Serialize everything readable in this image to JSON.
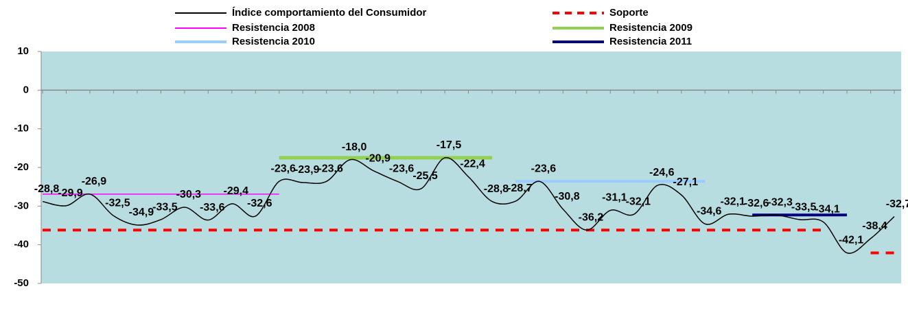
{
  "chart_data": {
    "type": "line",
    "categories": [
      null,
      null,
      null,
      null,
      null,
      null,
      null,
      null,
      null,
      null,
      null,
      null,
      null,
      null,
      null,
      null,
      null,
      null,
      null,
      null,
      null,
      null,
      null,
      null,
      null,
      null,
      null,
      null,
      null,
      null,
      null,
      null,
      null,
      null,
      null,
      null,
      null
    ],
    "ylim": [
      -50,
      10
    ],
    "yticks": [
      -50,
      -40,
      -30,
      -20,
      -10,
      0,
      10
    ],
    "plot_background": "#b7dde1",
    "legend": "top",
    "series": [
      {
        "name": "Índice comportamiento del Consumidor",
        "color": "#000000",
        "width": 1.5,
        "smooth": true,
        "values": [
          -28.8,
          -29.9,
          -26.9,
          -32.5,
          -34.9,
          -33.5,
          -30.3,
          -33.6,
          -29.4,
          -32.6,
          -23.6,
          -23.9,
          -23.6,
          -18.0,
          -20.9,
          -23.6,
          -25.5,
          -17.5,
          -22.4,
          -28.8,
          -28.7,
          -23.6,
          -30.8,
          -36.2,
          -31.1,
          -32.1,
          -24.6,
          -27.1,
          -34.6,
          -32.1,
          -32.6,
          -32.3,
          -33.5,
          -34.1,
          -42.1,
          -38.4,
          -32.7
        ],
        "value_labels": [
          "-28,8",
          "-29,9",
          "-26,9",
          "-32,5",
          "-34,9",
          "-33,5",
          "-30,3",
          "-33,6",
          "-29,4",
          "-32,6",
          "-23,6",
          "-23,9",
          "-23,6",
          "-18,0",
          "-20,9",
          "-23,6",
          "-25,5",
          "-17,5",
          "-22,4",
          "-28,8",
          "-28,7",
          "-23,6",
          "-30,8",
          "-36,2",
          "-31,1",
          "-32,1",
          "-24,6",
          "-27,1",
          "-34,6",
          "-32,1",
          "-32,6",
          "-32,3",
          "-33,5",
          "-34,1",
          "-42,1",
          "-38,4",
          "-32,7"
        ]
      },
      {
        "name": "Soporte",
        "color": "#ff0000",
        "width": 4,
        "dashed": true,
        "values": [
          -36.2,
          -36.2,
          -36.2,
          -36.2,
          -36.2,
          -36.2,
          -36.2,
          -36.2,
          -36.2,
          -36.2,
          -36.2,
          -36.2,
          -36.2,
          -36.2,
          -36.2,
          -36.2,
          -36.2,
          -36.2,
          -36.2,
          -36.2,
          -36.2,
          -36.2,
          -36.2,
          -36.2,
          -36.2,
          -36.2,
          -36.2,
          -36.2,
          -36.2,
          -36.2,
          -36.2,
          -36.2,
          -36.2,
          -36.2,
          null,
          -42.1,
          -42.1
        ]
      },
      {
        "name": "Resistencia 2008",
        "color": "#ff00ff",
        "width": 1.5,
        "values": [
          -26.9,
          -26.9,
          -26.9,
          -26.9,
          -26.9,
          -26.9,
          -26.9,
          -26.9,
          -26.9,
          -26.9,
          -26.9,
          null,
          null,
          null,
          null,
          null,
          null,
          null,
          null,
          null,
          null,
          null,
          null,
          null,
          null,
          null,
          null,
          null,
          null,
          null,
          null,
          null,
          null,
          null,
          null,
          null,
          null
        ]
      },
      {
        "name": "Resistencia 2009",
        "color": "#92d050",
        "width": 5,
        "values": [
          null,
          null,
          null,
          null,
          null,
          null,
          null,
          null,
          null,
          null,
          -17.5,
          -17.5,
          -17.5,
          -17.5,
          -17.5,
          -17.5,
          -17.5,
          -17.5,
          -17.5,
          -17.5,
          null,
          null,
          null,
          null,
          null,
          null,
          null,
          null,
          null,
          null,
          null,
          null,
          null,
          null,
          null,
          null,
          null
        ]
      },
      {
        "name": "Resistencia 2010",
        "color": "#99ccff",
        "width": 4,
        "values": [
          null,
          null,
          null,
          null,
          null,
          null,
          null,
          null,
          null,
          null,
          null,
          null,
          null,
          null,
          null,
          null,
          null,
          null,
          null,
          null,
          -23.6,
          -23.6,
          -23.6,
          -23.6,
          -23.6,
          -23.6,
          -23.6,
          -23.6,
          -23.6,
          null,
          null,
          null,
          null,
          null,
          null,
          null,
          null
        ]
      },
      {
        "name": "Resistencia 2011",
        "color": "#000080",
        "width": 4,
        "values": [
          null,
          null,
          null,
          null,
          null,
          null,
          null,
          null,
          null,
          null,
          null,
          null,
          null,
          null,
          null,
          null,
          null,
          null,
          null,
          null,
          null,
          null,
          null,
          null,
          null,
          null,
          null,
          null,
          null,
          null,
          -32.3,
          -32.3,
          -32.3,
          -32.3,
          -32.3,
          null,
          null
        ]
      }
    ]
  }
}
